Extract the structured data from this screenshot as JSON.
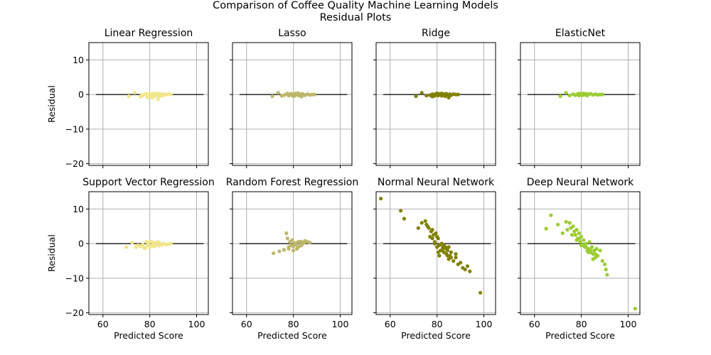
{
  "figure": {
    "title_line1": "Comparison of Coffee Quality Machine Learning Models",
    "title_line2": "Residual Plots"
  },
  "chart_data": [
    {
      "type": "scatter",
      "title": "Linear Regression",
      "xlabel": "",
      "ylabel": "Residual",
      "xlim": [
        54,
        105
      ],
      "ylim": [
        -20.5,
        15
      ],
      "xticks": [
        60,
        80,
        100
      ],
      "yticks": [
        10,
        0,
        -10,
        -20
      ],
      "color": "#f0e68c",
      "hline": {
        "y": 0,
        "x": [
          57,
          103
        ]
      },
      "x": [
        71,
        73.5,
        76,
        77,
        78,
        79,
        79.5,
        80,
        80.5,
        81,
        81.5,
        82,
        82.5,
        83,
        83.5,
        84,
        84.5,
        85,
        85.5,
        86,
        86.5,
        87,
        88,
        89,
        76.5,
        78.5,
        81,
        83,
        84,
        85.5
      ],
      "y": [
        -0.5,
        0.5,
        -0.7,
        -0.3,
        0.1,
        -0.8,
        -0.3,
        0.2,
        -0.6,
        -0.1,
        0.3,
        -0.5,
        0.1,
        -0.2,
        -1.4,
        0.2,
        -0.4,
        0.1,
        -0.2,
        0.1,
        -0.1,
        0.0,
        0.1,
        0.0,
        -0.1,
        0.2,
        -0.9,
        0.3,
        -0.6,
        -0.3
      ]
    },
    {
      "type": "scatter",
      "title": "Lasso",
      "xlabel": "",
      "ylabel": "",
      "xlim": [
        54,
        105
      ],
      "ylim": [
        -20.5,
        15
      ],
      "xticks": [
        60,
        80,
        100
      ],
      "yticks": [
        10,
        0,
        -10,
        -20
      ],
      "color": "#bdb76b",
      "hline": {
        "y": 0,
        "x": [
          57,
          103
        ]
      },
      "x": [
        71,
        73.5,
        75,
        76,
        77,
        78,
        79,
        79.5,
        80,
        80.5,
        81,
        81.5,
        82,
        82.5,
        83,
        83.5,
        84,
        85,
        86,
        87,
        88,
        89,
        77.5,
        80,
        82,
        84.5
      ],
      "y": [
        -0.5,
        0.5,
        -0.4,
        -0.2,
        0.1,
        -0.3,
        0.2,
        -0.2,
        0.1,
        -0.4,
        0.3,
        -0.1,
        0.2,
        -0.3,
        0.1,
        -0.6,
        0.2,
        -0.2,
        0.1,
        -0.1,
        0.0,
        0.0,
        0.3,
        -0.5,
        0.4,
        -0.1
      ]
    },
    {
      "type": "scatter",
      "title": "Ridge",
      "xlabel": "",
      "ylabel": "",
      "xlim": [
        54,
        105
      ],
      "ylim": [
        -20.5,
        15
      ],
      "xticks": [
        60,
        80,
        100
      ],
      "yticks": [
        10,
        0,
        -10,
        -20
      ],
      "color": "#808000",
      "hline": {
        "y": 0,
        "x": [
          57,
          103
        ]
      },
      "x": [
        71,
        73.5,
        75.5,
        77,
        78,
        79,
        79.5,
        80,
        80.5,
        81,
        81.5,
        82,
        82.5,
        83,
        83.5,
        84,
        84.5,
        85,
        85.5,
        86,
        87,
        88,
        89,
        78,
        80,
        82,
        84
      ],
      "y": [
        -0.5,
        0.5,
        -0.3,
        -0.2,
        0.1,
        -0.4,
        0.2,
        0.1,
        -0.3,
        0.2,
        -0.1,
        0.3,
        -0.2,
        0.1,
        -0.5,
        0.2,
        -0.1,
        -0.9,
        0.1,
        -0.2,
        0.1,
        0.0,
        0.0,
        -0.6,
        0.3,
        -0.4,
        0.2
      ]
    },
    {
      "type": "scatter",
      "title": "ElasticNet",
      "xlabel": "",
      "ylabel": "",
      "xlim": [
        54,
        105
      ],
      "ylim": [
        -20.5,
        15
      ],
      "xticks": [
        60,
        80,
        100
      ],
      "yticks": [
        10,
        0,
        -10,
        -20
      ],
      "color": "#9acd32",
      "hline": {
        "y": 0,
        "x": [
          57,
          103
        ]
      },
      "x": [
        71,
        73.5,
        75,
        76.5,
        77.5,
        78.5,
        79,
        80,
        80.5,
        81,
        81.5,
        82,
        82.5,
        83,
        84,
        85,
        86,
        87,
        88,
        89,
        79.5,
        82.5
      ],
      "y": [
        -0.5,
        0.5,
        -0.3,
        0.1,
        -0.2,
        0.2,
        -0.3,
        0.1,
        -0.2,
        0.3,
        -0.1,
        0.2,
        -0.3,
        0.1,
        0.2,
        -0.1,
        0.1,
        -0.1,
        0.0,
        0.0,
        0.3,
        -0.2
      ]
    },
    {
      "type": "scatter",
      "title": "Support Vector Regression",
      "xlabel": "Predicted Score",
      "ylabel": "Residual",
      "xlim": [
        54,
        105
      ],
      "ylim": [
        -20.5,
        15
      ],
      "xticks": [
        60,
        80,
        100
      ],
      "yticks": [
        10,
        0,
        -10,
        -20
      ],
      "color": "#f0e68c",
      "hline": {
        "y": 0,
        "x": [
          57,
          103
        ]
      },
      "x": [
        70,
        72.5,
        74,
        75,
        76,
        77,
        78,
        78.5,
        79,
        79.5,
        80,
        80.5,
        81,
        81.5,
        82,
        82.5,
        83,
        83.5,
        84,
        84.5,
        85,
        86,
        87,
        88,
        89,
        77.5,
        79,
        81,
        83,
        85
      ],
      "y": [
        -1.0,
        0.3,
        -1.0,
        -0.5,
        -0.8,
        -0.3,
        -1.4,
        0.5,
        -0.6,
        0.2,
        -1.0,
        0.6,
        -0.4,
        0.3,
        -0.8,
        0.2,
        -0.3,
        0.5,
        -0.6,
        0.1,
        -0.2,
        0.0,
        -0.3,
        -0.1,
        0.0,
        -1.2,
        0.4,
        -0.7,
        0.3,
        -0.4
      ]
    },
    {
      "type": "scatter",
      "title": "Random Forest Regression",
      "xlabel": "Predicted Score",
      "ylabel": "",
      "xlim": [
        54,
        105
      ],
      "ylim": [
        -20.5,
        15
      ],
      "xticks": [
        60,
        80,
        100
      ],
      "yticks": [
        10,
        0,
        -10,
        -20
      ],
      "color": "#bdb76b",
      "hline": {
        "y": 0,
        "x": [
          57,
          103
        ]
      },
      "x": [
        71.5,
        74,
        76,
        77,
        77.5,
        78,
        78.5,
        79,
        79.5,
        80,
        80.5,
        81,
        81.5,
        82,
        82.5,
        83,
        83.5,
        84,
        84.5,
        85,
        86,
        87,
        78,
        80,
        82,
        83
      ],
      "y": [
        -2.8,
        -2.2,
        -1.8,
        3.0,
        1.5,
        -1.0,
        0.5,
        -0.5,
        1.0,
        -2.0,
        0.2,
        -0.3,
        -1.5,
        0.5,
        -0.8,
        0.3,
        -0.5,
        0.4,
        0.2,
        0.8,
        0.5,
        0.3,
        -1.5,
        -0.8,
        -1.0,
        0.6
      ]
    },
    {
      "type": "scatter",
      "title": "Normal Neural Network",
      "xlabel": "Predicted Score",
      "ylabel": "",
      "xlim": [
        54,
        105
      ],
      "ylim": [
        -20.5,
        15
      ],
      "xticks": [
        60,
        80,
        100
      ],
      "yticks": [
        10,
        0,
        -10,
        -20
      ],
      "color": "#808000",
      "hline": {
        "y": 0,
        "x": [
          57,
          103
        ]
      },
      "x": [
        56,
        64.5,
        66,
        72,
        73.5,
        75,
        75.5,
        76.5,
        77,
        77.5,
        78,
        78.5,
        79,
        79.5,
        80,
        80.5,
        81,
        81.5,
        82,
        82.5,
        83,
        83.5,
        84,
        84.5,
        85,
        85.5,
        86,
        87,
        88,
        89,
        90,
        91,
        92,
        93,
        94,
        98.5,
        76,
        78,
        80,
        81,
        82,
        83,
        84,
        85,
        86,
        88,
        79,
        80.5,
        82.5,
        84.5
      ],
      "y": [
        13,
        9.5,
        7.2,
        4.5,
        6.0,
        6.5,
        5.5,
        4.5,
        2.0,
        3.5,
        1.5,
        2.5,
        0.5,
        3.0,
        -1.0,
        1.5,
        -0.5,
        -2.0,
        0.0,
        -1.5,
        -2.5,
        -1.0,
        -3.0,
        -2.0,
        -4.5,
        -3.5,
        -2.5,
        -5.0,
        -4.0,
        -6.0,
        -5.5,
        -7.0,
        -7.5,
        -6.5,
        -8.0,
        -14.2,
        5.0,
        4.0,
        2.0,
        -3.5,
        -2.0,
        -0.5,
        -1.5,
        -1.0,
        -4.0,
        -3.0,
        0.0,
        -2.5,
        -1.0,
        -3.5
      ]
    },
    {
      "type": "scatter",
      "title": "Deep Neural Network",
      "xlabel": "Predicted Score",
      "ylabel": "",
      "xlim": [
        54,
        105
      ],
      "ylim": [
        -20.5,
        15
      ],
      "xticks": [
        60,
        80,
        100
      ],
      "yticks": [
        10,
        0,
        -10,
        -20
      ],
      "color": "#9acd32",
      "hline": {
        "y": 0,
        "x": [
          57,
          103
        ]
      },
      "x": [
        65,
        67,
        70,
        72,
        73.5,
        75,
        75.5,
        76.5,
        77,
        77.5,
        78,
        78.5,
        79,
        79.5,
        80,
        80.5,
        81,
        81.5,
        82,
        82.5,
        83,
        83.5,
        84,
        84.5,
        85,
        85.5,
        86,
        86.5,
        87,
        88,
        89,
        90,
        90.5,
        91,
        103,
        74,
        76,
        78,
        80,
        82,
        84,
        86,
        79,
        81,
        83,
        85
      ],
      "y": [
        4.3,
        8.2,
        5.5,
        3.0,
        6.3,
        6.0,
        4.5,
        5.0,
        3.5,
        2.5,
        4.0,
        1.5,
        3.0,
        0.5,
        2.0,
        -0.5,
        1.0,
        -1.0,
        0.0,
        -2.0,
        -1.5,
        0.5,
        -2.5,
        -1.0,
        -3.0,
        -2.0,
        -4.0,
        -1.5,
        -3.5,
        -2.0,
        -5.0,
        -6.0,
        -7.5,
        -9.0,
        -18.8,
        4.0,
        2.5,
        1.0,
        -0.5,
        -1.0,
        -2.0,
        -3.0,
        1.5,
        -0.5,
        -2.5,
        -4.5
      ]
    }
  ]
}
